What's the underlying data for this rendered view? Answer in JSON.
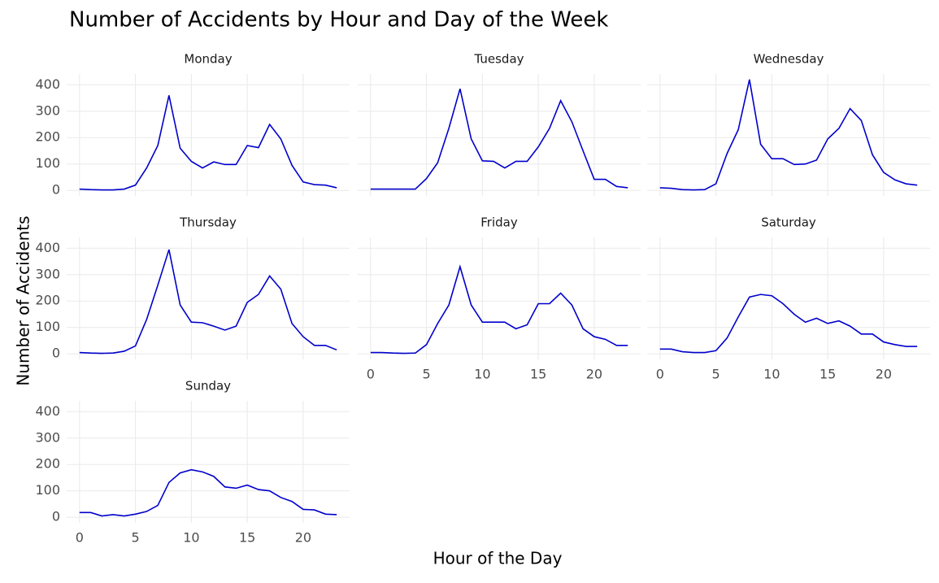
{
  "chart_data": {
    "type": "line",
    "title": "Number of Accidents by Hour and Day of the Week",
    "x_label": "Hour of the Day",
    "y_label": "Number of Accidents",
    "color": "#0000cc",
    "grid": true,
    "x": [
      0,
      1,
      2,
      3,
      4,
      5,
      6,
      7,
      8,
      9,
      10,
      11,
      12,
      13,
      14,
      15,
      16,
      17,
      18,
      19,
      20,
      21,
      22,
      23
    ],
    "xlim": [
      -1.15,
      24.15
    ],
    "ylim": [
      -21,
      441
    ],
    "xticks": [
      0,
      5,
      10,
      15,
      20
    ],
    "yticks": [
      0,
      100,
      200,
      300,
      400
    ],
    "facets": [
      {
        "name": "Monday",
        "values": [
          5,
          3,
          2,
          2,
          5,
          20,
          85,
          170,
          360,
          160,
          110,
          85,
          108,
          98,
          98,
          170,
          162,
          250,
          195,
          95,
          32,
          22,
          20,
          10
        ]
      },
      {
        "name": "Tuesday",
        "values": [
          5,
          5,
          5,
          5,
          5,
          45,
          105,
          235,
          385,
          195,
          112,
          110,
          85,
          110,
          110,
          165,
          235,
          340,
          260,
          150,
          42,
          42,
          15,
          10
        ]
      },
      {
        "name": "Wednesday",
        "values": [
          10,
          8,
          3,
          2,
          3,
          25,
          140,
          230,
          420,
          175,
          120,
          120,
          98,
          100,
          115,
          195,
          235,
          310,
          265,
          135,
          68,
          40,
          25,
          20
        ]
      },
      {
        "name": "Thursday",
        "values": [
          5,
          3,
          2,
          3,
          10,
          30,
          130,
          260,
          395,
          185,
          120,
          118,
          105,
          90,
          105,
          195,
          225,
          295,
          245,
          115,
          65,
          32,
          32,
          15
        ]
      },
      {
        "name": "Friday",
        "values": [
          5,
          5,
          3,
          2,
          3,
          35,
          115,
          185,
          330,
          185,
          120,
          120,
          120,
          95,
          110,
          190,
          190,
          230,
          185,
          95,
          65,
          55,
          32,
          32
        ]
      },
      {
        "name": "Saturday",
        "values": [
          18,
          18,
          8,
          5,
          5,
          12,
          60,
          140,
          215,
          225,
          220,
          190,
          150,
          120,
          135,
          115,
          125,
          105,
          75,
          75,
          45,
          35,
          28,
          28
        ]
      },
      {
        "name": "Sunday",
        "values": [
          18,
          18,
          5,
          10,
          5,
          12,
          22,
          45,
          132,
          168,
          180,
          172,
          155,
          115,
          110,
          122,
          105,
          100,
          75,
          60,
          30,
          28,
          12,
          10
        ]
      }
    ]
  }
}
